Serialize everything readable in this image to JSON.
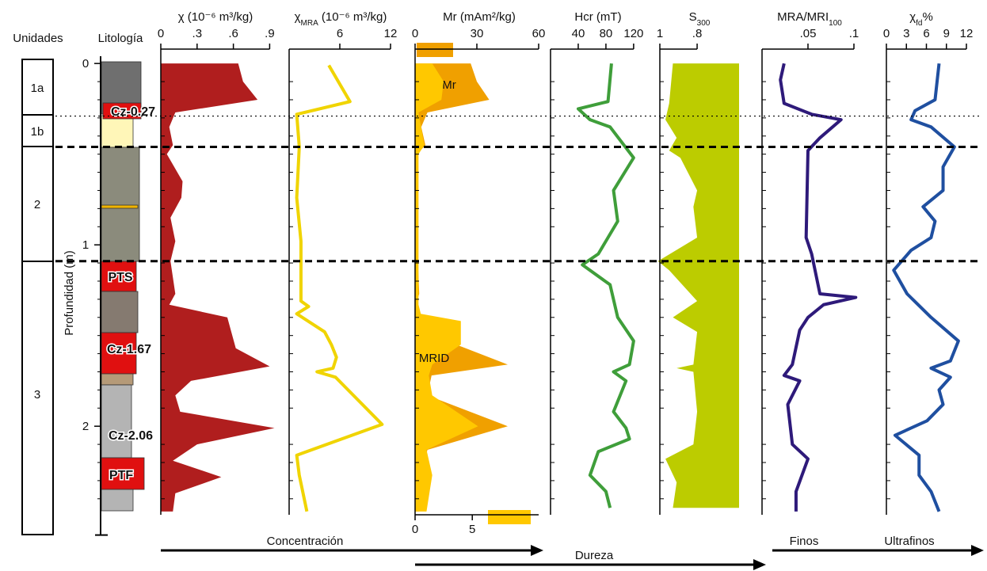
{
  "headers": {
    "units": "Unidades",
    "lithology": "Litología"
  },
  "units": [
    "1a",
    "1b",
    "2",
    "3"
  ],
  "lithology_labels": [
    "Cz-0.27",
    "PTS",
    "Cz-1.67",
    "Cz-2.06",
    "PTF"
  ],
  "depth_axis": {
    "label": "Profundidad (m)",
    "ylim": [
      -0.04,
      2.6
    ],
    "yticks": [
      0,
      1,
      2
    ],
    "minor_ticks": [
      0.1,
      0.2,
      0.3,
      0.4,
      0.5,
      0.6,
      0.7,
      0.8,
      0.9,
      1.1,
      1.2,
      1.3,
      1.4,
      1.5,
      1.6,
      1.7,
      1.8,
      1.9,
      2.1,
      2.2,
      2.3,
      2.4
    ]
  },
  "boundaries": [
    {
      "depth": 0.29,
      "style": "dotted"
    },
    {
      "depth": 0.46,
      "style": "dashed"
    },
    {
      "depth": 1.09,
      "style": "dashed"
    }
  ],
  "arrows": {
    "labels": [
      "Concentración",
      "Dureza",
      "Finos",
      "Ultrafinos"
    ]
  },
  "chart_data": [
    {
      "type": "area",
      "title": "χ (10⁻⁶ m³/kg)",
      "xlim": [
        0,
        0.93
      ],
      "xticks": [
        0,
        {
          "value": 0.3,
          "label": ".3"
        },
        {
          "value": 0.6,
          "label": ".6"
        },
        {
          "value": 0.9,
          "label": ".9"
        }
      ],
      "series": [
        {
          "color": "#b01e1e",
          "depth": [
            0,
            0.1,
            0.2,
            0.27,
            0.35,
            0.45,
            0.5,
            0.65,
            0.74,
            0.85,
            0.98,
            1.09,
            1.27,
            1.33,
            1.4,
            1.57,
            1.67,
            1.75,
            1.83,
            1.92,
            2.01,
            2.1,
            2.19,
            2.28,
            2.37,
            2.47
          ],
          "values": [
            0.64,
            0.68,
            0.8,
            0.12,
            0.07,
            0.1,
            0.05,
            0.18,
            0.17,
            0.08,
            0.12,
            0.08,
            0.12,
            0.07,
            0.55,
            0.62,
            0.9,
            0.25,
            0.12,
            0.16,
            0.94,
            0.3,
            0.1,
            0.5,
            0.12,
            0.1
          ]
        }
      ]
    },
    {
      "type": "line",
      "title": "χ",
      "title_sub": "MRA",
      "title_end": " (10⁻⁶ m³/kg)",
      "xlim": [
        0,
        12
      ],
      "xticks": [
        6,
        12
      ],
      "series": [
        {
          "color": "#f0d400",
          "depth": [
            0.01,
            0.21,
            0.28,
            0.46,
            0.74,
            0.98,
            1.31,
            1.34,
            1.38,
            1.48,
            1.55,
            1.62,
            1.68,
            1.7,
            1.73,
            1.99,
            2.16,
            2.27,
            2.47
          ],
          "values": [
            4.7,
            7.2,
            0.9,
            1.2,
            0.9,
            1.4,
            1.4,
            2.3,
            0.9,
            4.2,
            5,
            5.6,
            5.2,
            3.3,
            5.5,
            11,
            0.9,
            1.2,
            2.1
          ]
        }
      ]
    },
    {
      "type": "area",
      "title": "Mr (mAm²/kg)",
      "xlim": [
        0,
        60
      ],
      "xticks": [
        0,
        30,
        60
      ],
      "x2lim": [
        0,
        10.8
      ],
      "x2ticks": [
        0,
        5
      ],
      "series": [
        {
          "name": "Mr",
          "color": "#f0a000",
          "depth": [
            0,
            0.1,
            0.2,
            0.27,
            0.35,
            0.45,
            0.5,
            0.98,
            1.27,
            1.33,
            1.38,
            1.42,
            1.55,
            1.66,
            1.72,
            1.83,
            2.0,
            2.13,
            2.27,
            2.47
          ],
          "values": [
            27,
            30,
            36,
            6,
            3,
            5,
            1,
            1,
            2,
            0.5,
            1,
            12,
            20,
            45,
            8,
            6,
            45,
            6,
            3,
            2
          ]
        },
        {
          "name": "MRID",
          "color": "#ffc800",
          "axis": "x2",
          "depth": [
            0,
            0.1,
            0.2,
            0.27,
            0.45,
            0.5,
            1.33,
            1.38,
            1.42,
            1.55,
            1.66,
            1.72,
            1.83,
            2.0,
            2.13,
            2.27,
            2.47
          ],
          "values": [
            1.5,
            2.5,
            2.3,
            0.3,
            0.8,
            0.3,
            0.3,
            0.5,
            4,
            4,
            1.5,
            1.2,
            1.5,
            5.5,
            1,
            1.5,
            1
          ]
        }
      ]
    },
    {
      "type": "line",
      "title": "Hcr (mT)",
      "xlim": [
        0,
        135
      ],
      "xticks": [
        40,
        80,
        120
      ],
      "series": [
        {
          "color": "#3f9e3a",
          "depth": [
            0,
            0.21,
            0.25,
            0.31,
            0.35,
            0.52,
            0.7,
            0.87,
            1.05,
            1.11,
            1.22,
            1.4,
            1.53,
            1.66,
            1.7,
            1.75,
            1.92,
            2.01,
            2.07,
            2.14,
            2.27,
            2.36,
            2.45
          ],
          "values": [
            88,
            83,
            40,
            57,
            86,
            120,
            91,
            97,
            69,
            46,
            86,
            97,
            120,
            114,
            91,
            109,
            91,
            109,
            114,
            69,
            57,
            80,
            86
          ]
        }
      ]
    },
    {
      "type": "area",
      "title": "S",
      "title_sub": "300",
      "xlim": [
        1,
        0.575
      ],
      "xticks": [
        1,
        {
          "value": 0.8,
          "label": ".8"
        }
      ],
      "fill_to": "right",
      "series": [
        {
          "color": "#bccc00",
          "depth": [
            0,
            0.22,
            0.31,
            0.41,
            0.48,
            0.52,
            0.7,
            0.79,
            0.96,
            1.09,
            1.14,
            1.31,
            1.4,
            1.48,
            1.66,
            1.68,
            1.7,
            1.92,
            2.1,
            2.18,
            2.31,
            2.45
          ],
          "values": [
            0.93,
            0.95,
            0.97,
            0.91,
            0.95,
            0.89,
            0.8,
            0.82,
            0.8,
            1.01,
            0.95,
            0.8,
            0.93,
            0.8,
            0.82,
            0.91,
            0.82,
            0.8,
            0.82,
            0.97,
            0.91,
            0.93
          ]
        }
      ]
    },
    {
      "type": "line",
      "title": "MRA/MRI",
      "title_sub": "100",
      "xlim": [
        0,
        0.1
      ],
      "xticks": [
        {
          "value": 0.05,
          "label": ".05"
        },
        {
          "value": 0.1,
          "label": ".1"
        }
      ],
      "series": [
        {
          "color": "#2e1a7a",
          "depth": [
            0,
            0.09,
            0.22,
            0.28,
            0.31,
            0.41,
            0.48,
            0.96,
            1.05,
            1.27,
            1.29,
            1.33,
            1.4,
            1.47,
            1.66,
            1.72,
            1.75,
            1.88,
            2.1,
            2.18,
            2.36,
            2.47
          ],
          "values": [
            0.024,
            0.02,
            0.024,
            0.054,
            0.086,
            0.063,
            0.05,
            0.048,
            0.054,
            0.063,
            0.102,
            0.067,
            0.05,
            0.041,
            0.033,
            0.024,
            0.041,
            0.028,
            0.033,
            0.05,
            0.037,
            0.037
          ]
        }
      ]
    },
    {
      "type": "line",
      "title": "χ",
      "title_sub": "fd",
      "title_end": "%",
      "xlim": [
        0,
        12
      ],
      "xticks": [
        0,
        3,
        6,
        9,
        12
      ],
      "series": [
        {
          "color": "#1f4fa0",
          "depth": [
            0,
            0.2,
            0.26,
            0.31,
            0.35,
            0.46,
            0.57,
            0.7,
            0.79,
            0.87,
            0.96,
            1.03,
            1.14,
            1.27,
            1.4,
            1.53,
            1.64,
            1.68,
            1.73,
            1.8,
            1.88,
            1.97,
            2.05,
            2.16,
            2.27,
            2.36,
            2.47
          ],
          "values": [
            7.9,
            7.3,
            4.3,
            3.7,
            6.7,
            10.2,
            8.5,
            8.5,
            5.5,
            7.3,
            6.7,
            3.7,
            1.1,
            3.1,
            6.7,
            10.8,
            9.6,
            6.7,
            9.6,
            7.9,
            8.5,
            6.1,
            1.3,
            4.9,
            4.9,
            6.7,
            7.9
          ]
        }
      ]
    }
  ]
}
